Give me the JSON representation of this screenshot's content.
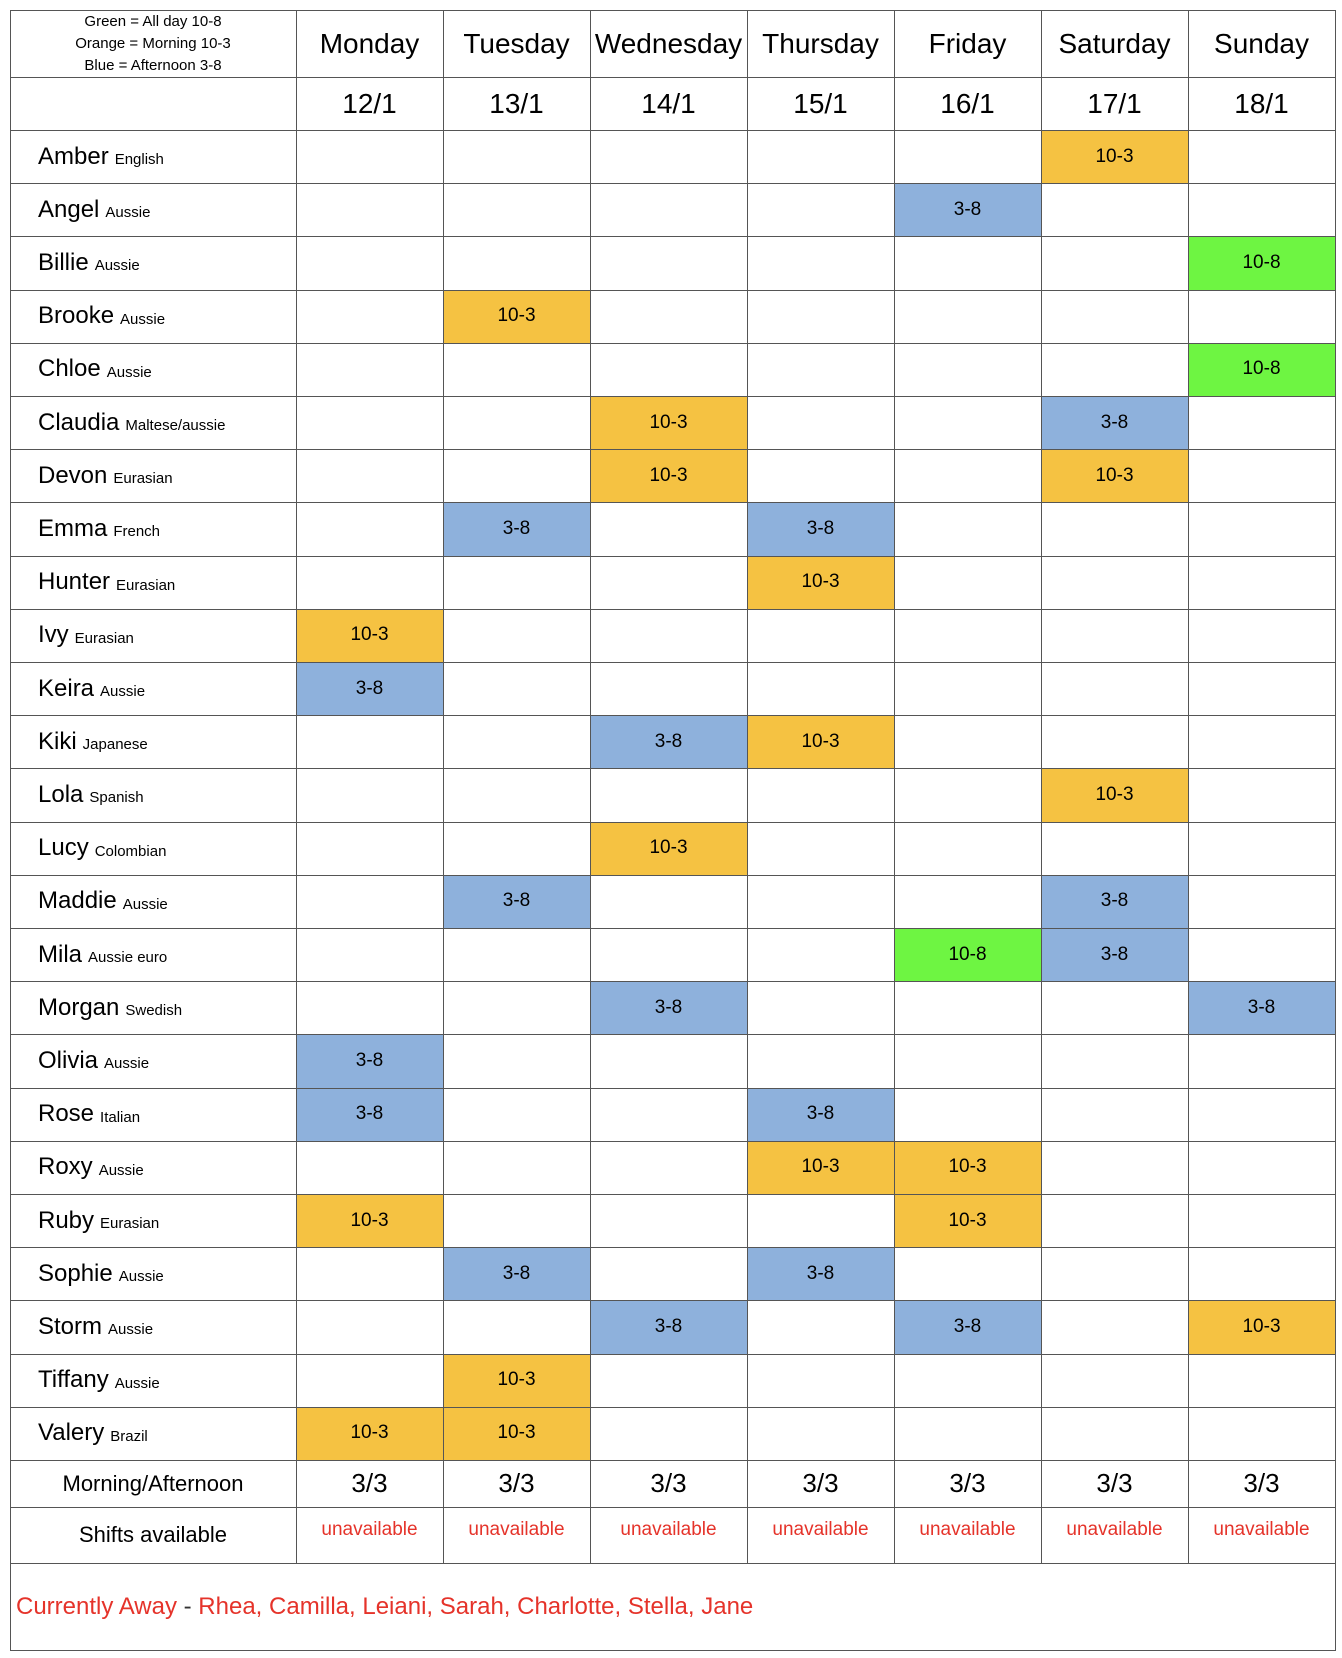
{
  "legend": [
    "Green = All day 10-8",
    "Orange = Morning 10-3",
    "Blue = Afternoon 3-8"
  ],
  "colors": {
    "green": "#6ef542",
    "orange": "#f5c242",
    "blue": "#8eb1dc",
    "red_text": "#e5332a"
  },
  "days": [
    "Monday",
    "Tuesday",
    "Wednesday",
    "Thursday",
    "Friday",
    "Saturday",
    "Sunday"
  ],
  "dates": [
    "12/1",
    "13/1",
    "14/1",
    "15/1",
    "16/1",
    "17/1",
    "18/1"
  ],
  "staff": [
    {
      "name": "Amber",
      "nationality": "English",
      "shifts": [
        "",
        "",
        "",
        "",
        "",
        "10-3",
        ""
      ]
    },
    {
      "name": "Angel",
      "nationality": "Aussie",
      "shifts": [
        "",
        "",
        "",
        "",
        "3-8",
        "",
        ""
      ]
    },
    {
      "name": "Billie",
      "nationality": "Aussie",
      "shifts": [
        "",
        "",
        "",
        "",
        "",
        "",
        "10-8"
      ]
    },
    {
      "name": "Brooke",
      "nationality": "Aussie",
      "shifts": [
        "",
        "10-3",
        "",
        "",
        "",
        "",
        ""
      ]
    },
    {
      "name": "Chloe",
      "nationality": "Aussie",
      "shifts": [
        "",
        "",
        "",
        "",
        "",
        "",
        "10-8"
      ]
    },
    {
      "name": "Claudia",
      "nationality": "Maltese/aussie",
      "shifts": [
        "",
        "",
        "10-3",
        "",
        "",
        "3-8",
        ""
      ]
    },
    {
      "name": "Devon",
      "nationality": "Eurasian",
      "shifts": [
        "",
        "",
        "10-3",
        "",
        "",
        "10-3",
        ""
      ]
    },
    {
      "name": "Emma",
      "nationality": "French",
      "shifts": [
        "",
        "3-8",
        "",
        "3-8",
        "",
        "",
        ""
      ]
    },
    {
      "name": "Hunter",
      "nationality": "Eurasian",
      "shifts": [
        "",
        "",
        "",
        "10-3",
        "",
        "",
        ""
      ]
    },
    {
      "name": "Ivy",
      "nationality": "Eurasian",
      "shifts": [
        "10-3",
        "",
        "",
        "",
        "",
        "",
        ""
      ]
    },
    {
      "name": "Keira",
      "nationality": "Aussie",
      "shifts": [
        "3-8",
        "",
        "",
        "",
        "",
        "",
        ""
      ]
    },
    {
      "name": "Kiki",
      "nationality": "Japanese",
      "shifts": [
        "",
        "",
        "3-8",
        "10-3",
        "",
        "",
        ""
      ]
    },
    {
      "name": "Lola",
      "nationality": "Spanish",
      "shifts": [
        "",
        "",
        "",
        "",
        "",
        "10-3",
        ""
      ]
    },
    {
      "name": "Lucy",
      "nationality": "Colombian",
      "shifts": [
        "",
        "",
        "10-3",
        "",
        "",
        "",
        ""
      ]
    },
    {
      "name": "Maddie",
      "nationality": "Aussie",
      "shifts": [
        "",
        "3-8",
        "",
        "",
        "",
        "3-8",
        ""
      ]
    },
    {
      "name": "Mila",
      "nationality": "Aussie euro",
      "shifts": [
        "",
        "",
        "",
        "",
        "10-8",
        "3-8",
        ""
      ]
    },
    {
      "name": "Morgan",
      "nationality": "Swedish",
      "shifts": [
        "",
        "",
        "3-8",
        "",
        "",
        "",
        "3-8"
      ]
    },
    {
      "name": "Olivia",
      "nationality": "Aussie",
      "shifts": [
        "3-8",
        "",
        "",
        "",
        "",
        "",
        ""
      ]
    },
    {
      "name": "Rose",
      "nationality": "Italian",
      "shifts": [
        "3-8",
        "",
        "",
        "3-8",
        "",
        "",
        ""
      ]
    },
    {
      "name": "Roxy",
      "nationality": "Aussie",
      "shifts": [
        "",
        "",
        "",
        "10-3",
        "10-3",
        "",
        ""
      ]
    },
    {
      "name": "Ruby",
      "nationality": "Eurasian",
      "shifts": [
        "10-3",
        "",
        "",
        "",
        "10-3",
        "",
        ""
      ]
    },
    {
      "name": "Sophie",
      "nationality": "Aussie",
      "shifts": [
        "",
        "3-8",
        "",
        "3-8",
        "",
        "",
        ""
      ]
    },
    {
      "name": "Storm",
      "nationality": "Aussie",
      "shifts": [
        "",
        "",
        "3-8",
        "",
        "3-8",
        "",
        "10-3"
      ]
    },
    {
      "name": "Tiffany",
      "nationality": "Aussie",
      "shifts": [
        "",
        "10-3",
        "",
        "",
        "",
        "",
        ""
      ]
    },
    {
      "name": "Valery",
      "nationality": "Brazil",
      "shifts": [
        "10-3",
        "10-3",
        "",
        "",
        "",
        "",
        ""
      ]
    }
  ],
  "summary": {
    "morning_afternoon_label": "Morning/Afternoon",
    "morning_afternoon": [
      "3/3",
      "3/3",
      "3/3",
      "3/3",
      "3/3",
      "3/3",
      "3/3"
    ],
    "shifts_available_label": "Shifts available",
    "shifts_available": [
      "unavailable",
      "unavailable",
      "unavailable",
      "unavailable",
      "unavailable",
      "unavailable",
      "unavailable"
    ]
  },
  "away": {
    "label": "Currently Away",
    "separator": " - ",
    "names": "Rhea, Camilla, Leiani, Sarah, Charlotte, Stella, Jane"
  }
}
